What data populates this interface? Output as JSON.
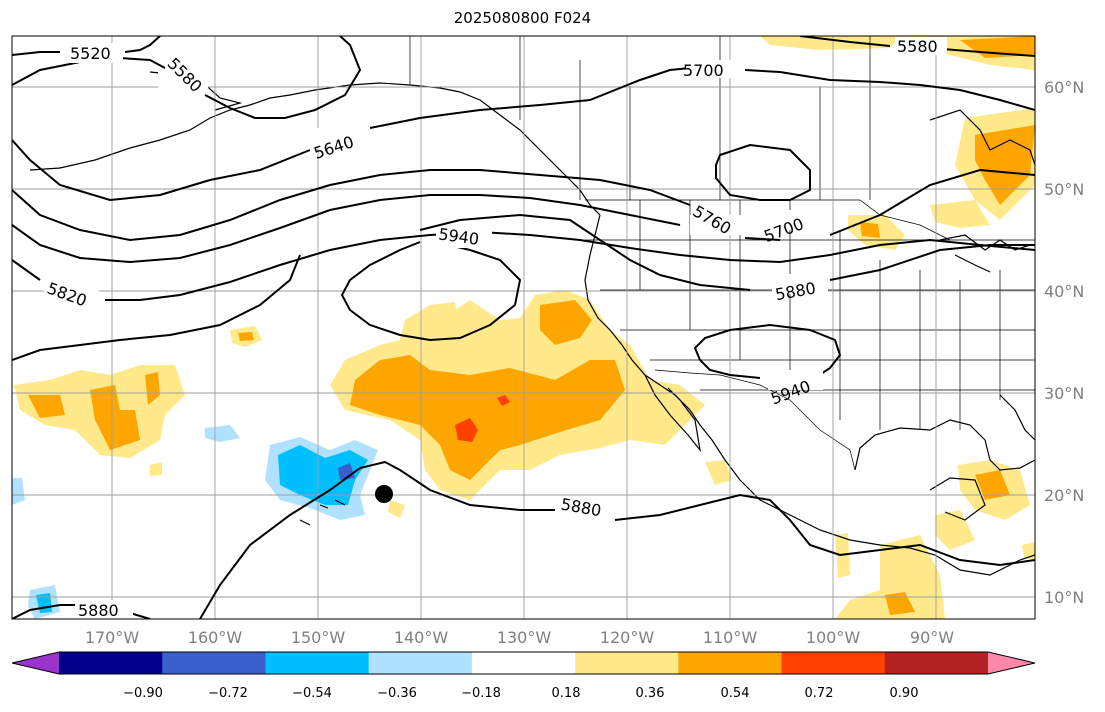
{
  "title": "2025080800 F024",
  "map": {
    "lon_labels": [
      "170°W",
      "160°W",
      "150°W",
      "140°W",
      "130°W",
      "120°W",
      "110°W",
      "100°W",
      "90°W"
    ],
    "lat_labels": [
      "60°N",
      "50°N",
      "40°N",
      "30°N",
      "20°N",
      "10°N"
    ],
    "contour_labels": [
      "5520",
      "5580",
      "5640",
      "5700",
      "5760",
      "5700",
      "5820",
      "5880",
      "5940",
      "5940",
      "5880",
      "5580",
      "5880"
    ],
    "marker": "black dot near 20°N 144°W"
  },
  "colorbar": {
    "ticks": [
      "−0.90",
      "−0.72",
      "−0.54",
      "−0.36",
      "−0.18",
      "0.18",
      "0.36",
      "0.54",
      "0.72",
      "0.90"
    ],
    "colors": [
      "#9933cc",
      "#00008b",
      "#3a5fcd",
      "#00bfff",
      "#b0e2ff",
      "#ffffff",
      "#ffe98a",
      "#ffa500",
      "#ff4000",
      "#b22222",
      "#ff88aa"
    ]
  }
}
